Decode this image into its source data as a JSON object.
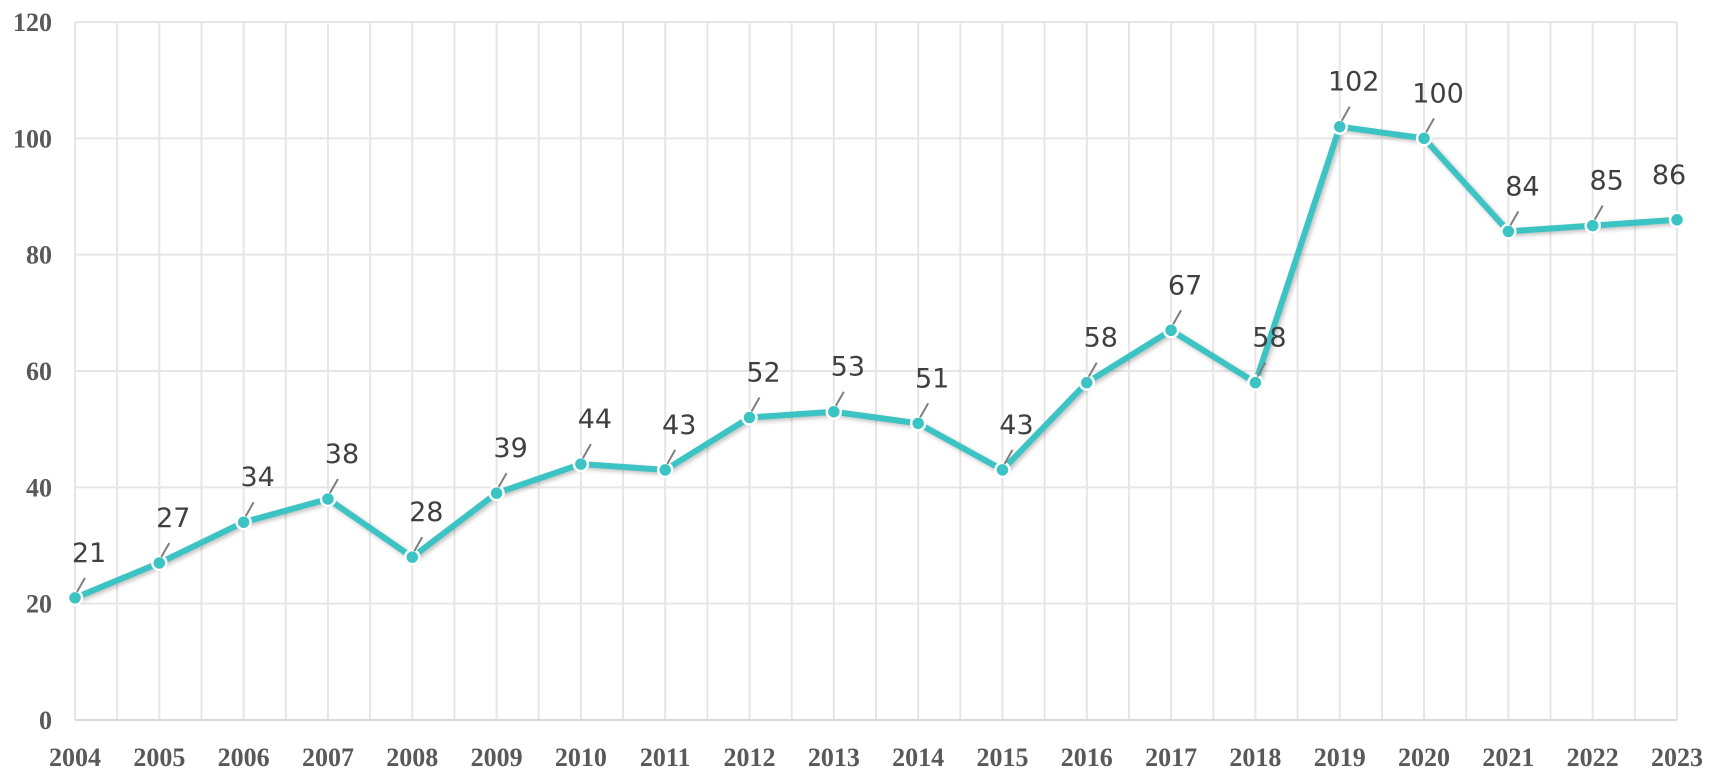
{
  "chart_data": {
    "type": "line",
    "title": "",
    "xlabel": "",
    "ylabel": "",
    "categories": [
      "2004",
      "2005",
      "2006",
      "2007",
      "2008",
      "2009",
      "2010",
      "2011",
      "2012",
      "2013",
      "2014",
      "2015",
      "2016",
      "2017",
      "2018",
      "2019",
      "2020",
      "2021",
      "2022",
      "2023"
    ],
    "series": [
      {
        "values": [
          21,
          27,
          34,
          38,
          28,
          39,
          44,
          43,
          52,
          53,
          51,
          43,
          58,
          67,
          58,
          102,
          100,
          84,
          85,
          86
        ],
        "color": "#3cc3c3"
      }
    ],
    "ylim": [
      0,
      120
    ],
    "yticks": [
      0,
      20,
      40,
      60,
      80,
      100,
      120
    ],
    "grid": true,
    "legend": "none",
    "data_labels": [
      "21",
      "27",
      "34",
      "38",
      "28",
      "39",
      "44",
      "43",
      "52",
      "53",
      "51",
      "43",
      "58",
      "67",
      "58",
      "102",
      "100",
      "84",
      "85",
      "86"
    ]
  }
}
